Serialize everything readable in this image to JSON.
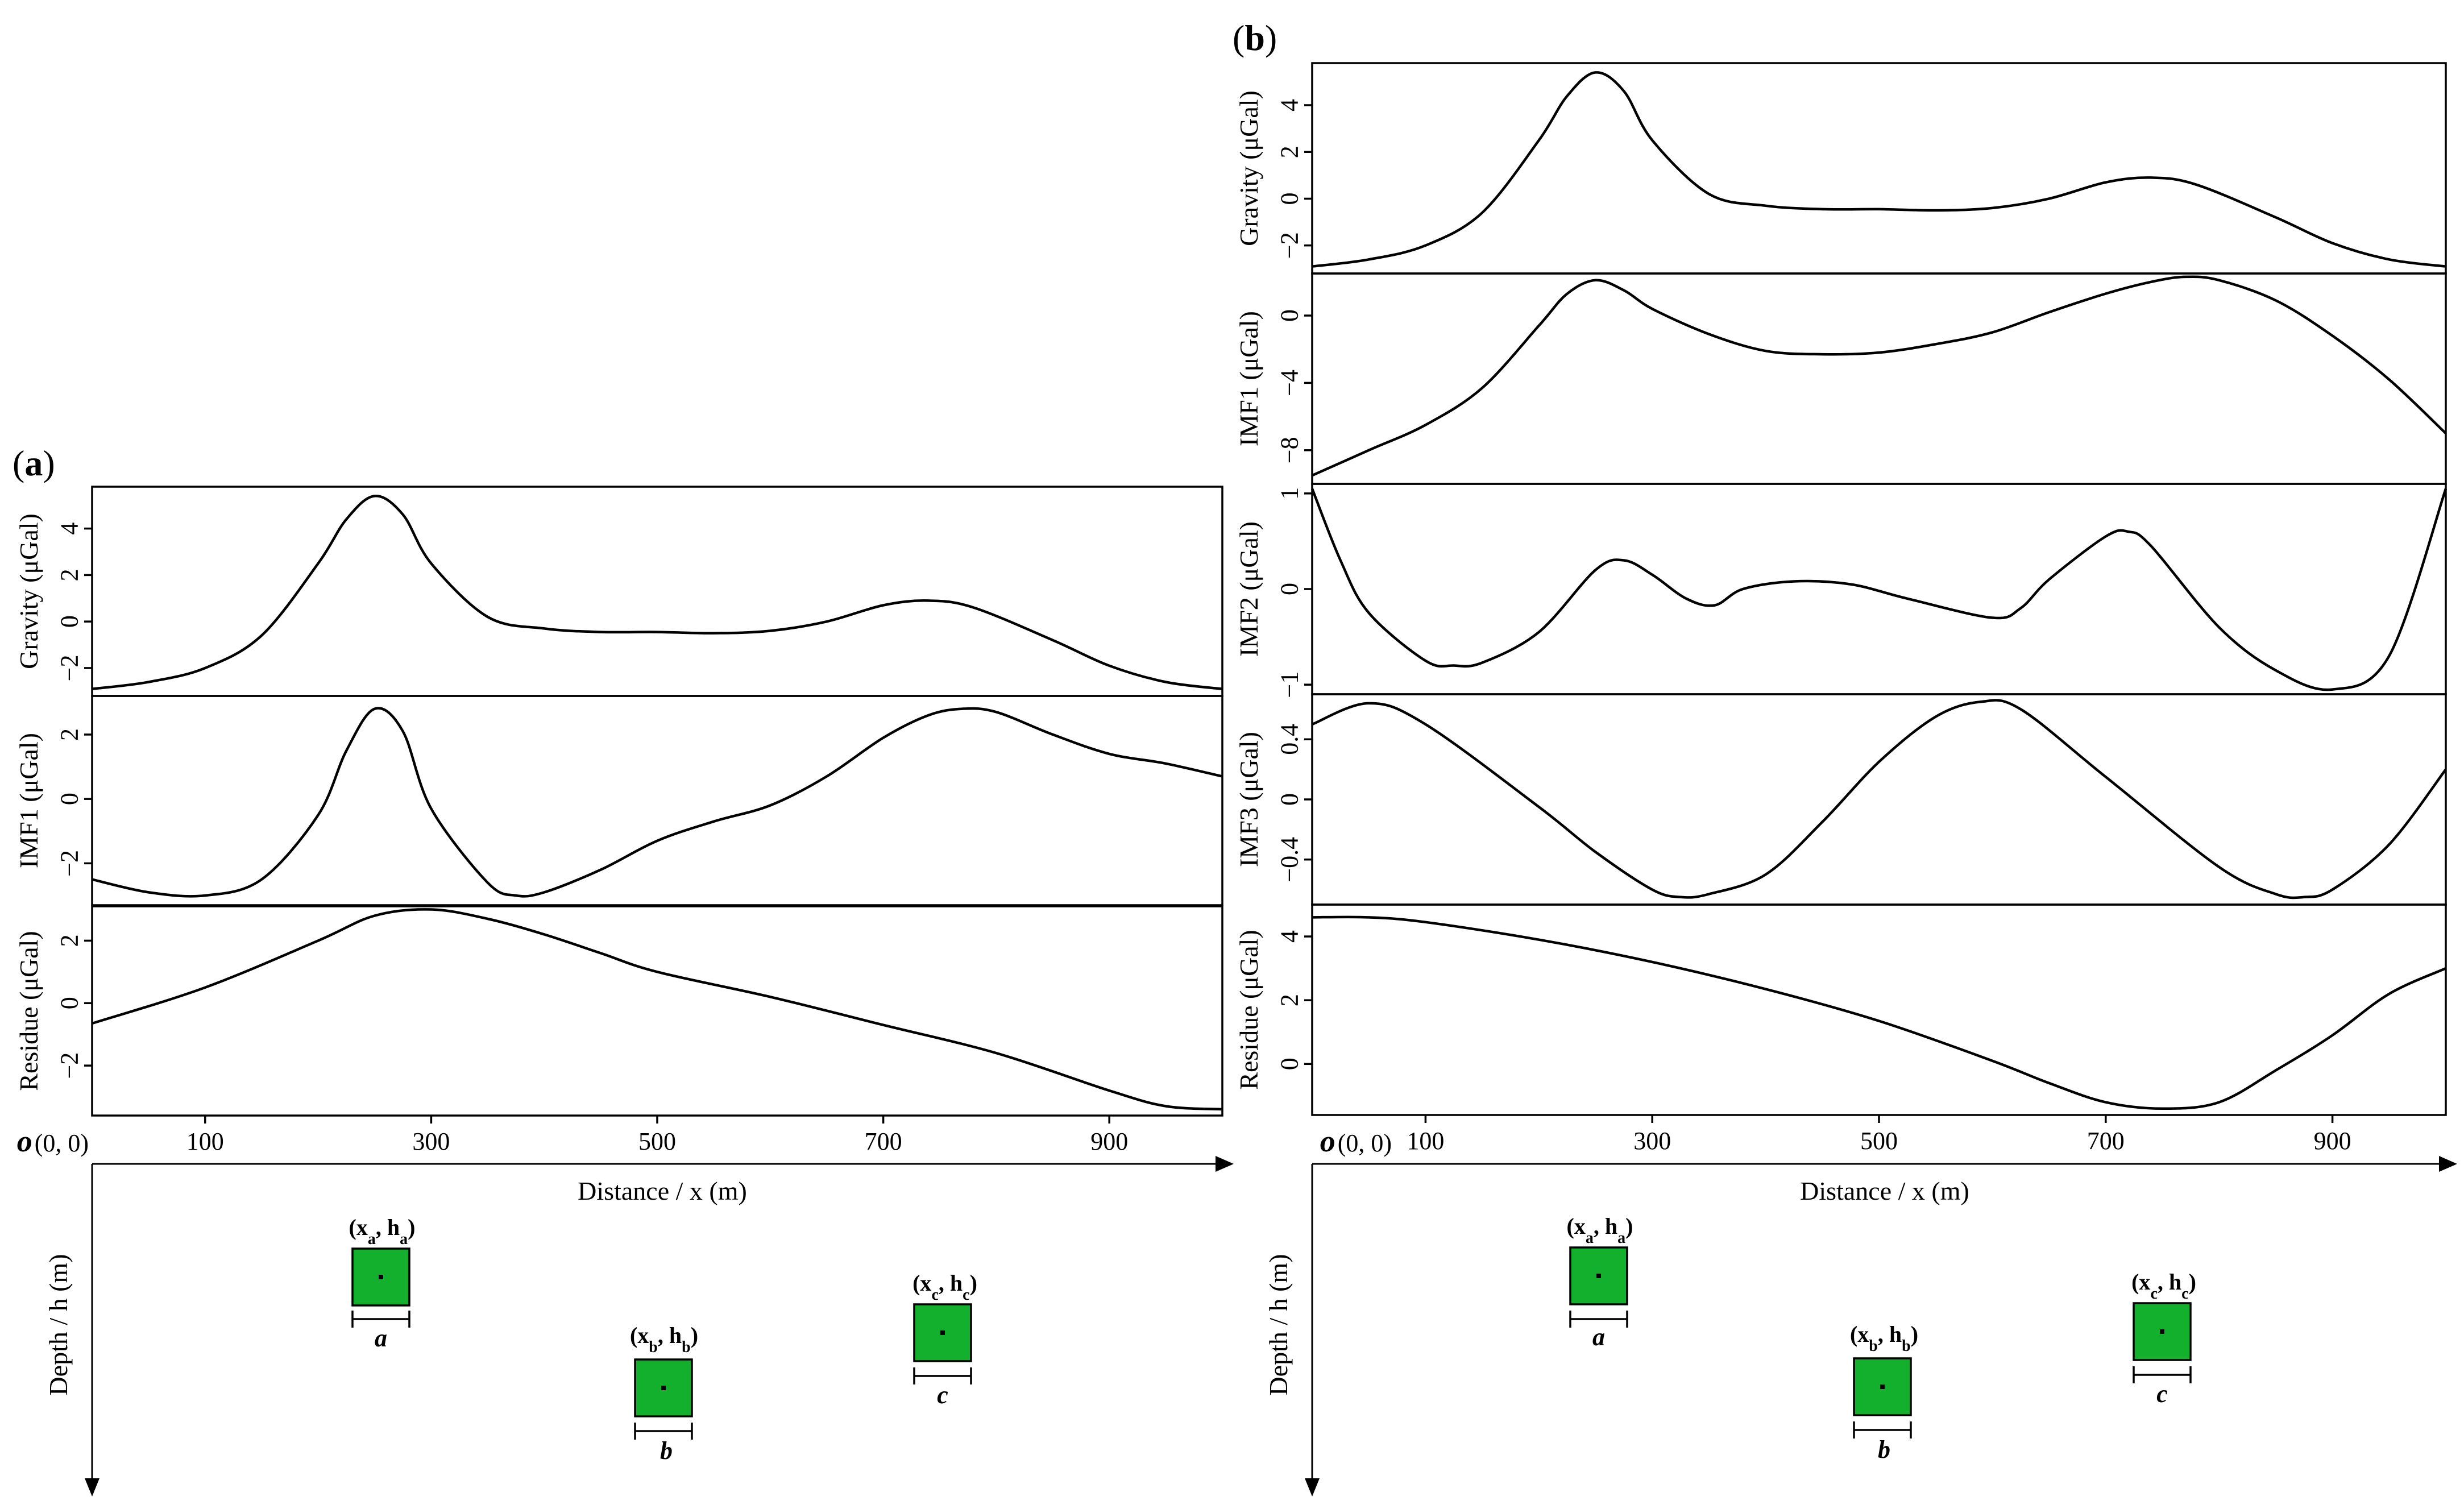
{
  "panels": [
    {
      "id": "a",
      "label": "a",
      "distance_label": "Distance / x (m)",
      "depth_label": "Depth / h (m)",
      "origin_label": "o",
      "origin_coords": "(0, 0)",
      "x_tick_labels": [
        "100",
        "300",
        "500",
        "700",
        "900"
      ],
      "bodies": [
        {
          "id": "a",
          "label": "(xa, ha)",
          "width_label": "a"
        },
        {
          "id": "b",
          "label": "(xb, hb)",
          "width_label": "b"
        },
        {
          "id": "c",
          "label": "(xc, hc)",
          "width_label": "c"
        }
      ]
    },
    {
      "id": "b",
      "label": "b",
      "distance_label": "Distance / x (m)",
      "depth_label": "Depth / h (m)",
      "origin_label": "o",
      "origin_coords": "(0, 0)",
      "x_tick_labels": [
        "100",
        "300",
        "500",
        "700",
        "900"
      ],
      "bodies": [
        {
          "id": "a",
          "label": "(xa, ha)",
          "width_label": "a"
        },
        {
          "id": "b",
          "label": "(xb, hb)",
          "width_label": "b"
        },
        {
          "id": "c",
          "label": "(xc, hc)",
          "width_label": "c"
        }
      ]
    }
  ],
  "colors": {
    "body_fill": "#12b02c",
    "line": "#000000"
  },
  "chart_data": [
    {
      "type": "line",
      "panel": "a",
      "title": "Gravity (μGal)",
      "ylabel": "Gravity (μGal)",
      "xlabel": "Distance / x (m)",
      "xlim": [
        0,
        1000
      ],
      "ylim": [
        -3.2,
        5.8
      ],
      "yticks": [
        4,
        2,
        0,
        -2
      ],
      "ytick_labels": [
        "4",
        "2",
        "0",
        "−2"
      ],
      "x": [
        0,
        50,
        100,
        150,
        200,
        225,
        250,
        275,
        300,
        350,
        400,
        450,
        500,
        550,
        600,
        650,
        700,
        740,
        780,
        850,
        900,
        950,
        1000
      ],
      "values": [
        -2.9,
        -2.6,
        -2.0,
        -0.6,
        2.5,
        4.4,
        5.4,
        4.6,
        2.5,
        0.2,
        -0.3,
        -0.45,
        -0.45,
        -0.5,
        -0.4,
        0.0,
        0.7,
        0.9,
        0.6,
        -0.8,
        -1.9,
        -2.6,
        -2.9
      ]
    },
    {
      "type": "line",
      "panel": "a",
      "title": "IMF1 (μGal)",
      "ylabel": "IMF1 (μGal)",
      "xlabel": "Distance / x (m)",
      "xlim": [
        0,
        1000
      ],
      "ylim": [
        -3.3,
        3.2
      ],
      "yticks": [
        2,
        0,
        -2
      ],
      "ytick_labels": [
        "2",
        "0",
        "−2"
      ],
      "x": [
        0,
        50,
        100,
        150,
        200,
        225,
        250,
        275,
        300,
        350,
        375,
        400,
        450,
        500,
        550,
        600,
        650,
        700,
        740,
        770,
        800,
        850,
        900,
        950,
        1000
      ],
      "values": [
        -2.5,
        -2.9,
        -3.0,
        -2.5,
        -0.5,
        1.5,
        2.8,
        2.1,
        -0.3,
        -2.6,
        -3.0,
        -2.9,
        -2.2,
        -1.3,
        -0.7,
        -0.2,
        0.7,
        1.9,
        2.6,
        2.8,
        2.7,
        2.0,
        1.4,
        1.1,
        0.7
      ]
    },
    {
      "type": "line",
      "panel": "a",
      "title": "Residue (μGal)",
      "ylabel": "Residue (μGal)",
      "xlabel": "Distance / x (m)",
      "xlim": [
        0,
        1000
      ],
      "ylim": [
        -3.6,
        3.1
      ],
      "yticks": [
        2,
        0,
        -2
      ],
      "ytick_labels": [
        "2",
        "0",
        "−2"
      ],
      "x": [
        0,
        100,
        200,
        250,
        300,
        350,
        400,
        450,
        500,
        600,
        700,
        800,
        900,
        950,
        1000
      ],
      "values": [
        -0.65,
        0.5,
        2.0,
        2.8,
        3.0,
        2.7,
        2.2,
        1.6,
        1.0,
        0.2,
        -0.7,
        -1.6,
        -2.8,
        -3.3,
        -3.4
      ]
    },
    {
      "type": "line",
      "panel": "b",
      "title": "Gravity (μGal)",
      "ylabel": "Gravity (μGal)",
      "xlabel": "Distance / x (m)",
      "xlim": [
        0,
        1000
      ],
      "ylim": [
        -3.2,
        5.8
      ],
      "yticks": [
        4,
        2,
        0,
        -2
      ],
      "ytick_labels": [
        "4",
        "2",
        "0",
        "−2"
      ],
      "x": [
        0,
        50,
        100,
        150,
        200,
        225,
        250,
        275,
        300,
        350,
        400,
        450,
        500,
        550,
        600,
        650,
        700,
        740,
        780,
        850,
        900,
        950,
        1000
      ],
      "values": [
        -2.9,
        -2.6,
        -2.0,
        -0.6,
        2.5,
        4.4,
        5.4,
        4.6,
        2.5,
        0.2,
        -0.3,
        -0.45,
        -0.45,
        -0.5,
        -0.4,
        0.0,
        0.7,
        0.9,
        0.6,
        -0.8,
        -1.9,
        -2.6,
        -2.9
      ]
    },
    {
      "type": "line",
      "panel": "b",
      "title": "IMF1 (μGal)",
      "ylabel": "IMF1 (μGal)",
      "xlabel": "Distance / x (m)",
      "xlim": [
        0,
        1000
      ],
      "ylim": [
        -10,
        2.5
      ],
      "yticks": [
        0,
        -4,
        -8
      ],
      "ytick_labels": [
        "0",
        "−4",
        "−8"
      ],
      "x": [
        0,
        50,
        100,
        150,
        200,
        225,
        250,
        275,
        300,
        350,
        400,
        450,
        500,
        550,
        600,
        650,
        700,
        740,
        770,
        800,
        850,
        900,
        950,
        1000
      ],
      "values": [
        -9.5,
        -8.0,
        -6.5,
        -4.3,
        -0.6,
        1.3,
        2.1,
        1.5,
        0.4,
        -1.1,
        -2.1,
        -2.3,
        -2.2,
        -1.7,
        -1.0,
        0.2,
        1.3,
        2.0,
        2.3,
        2.1,
        0.9,
        -1.2,
        -3.8,
        -7.0
      ]
    },
    {
      "type": "line",
      "panel": "b",
      "title": "IMF2 (μGal)",
      "ylabel": "IMF2 (μGal)",
      "xlabel": "Distance / x (m)",
      "xlim": [
        0,
        1000
      ],
      "ylim": [
        -1.1,
        1.1
      ],
      "yticks": [
        1,
        0,
        -1
      ],
      "ytick_labels": [
        "1",
        "0",
        "−1"
      ],
      "x": [
        0,
        25,
        50,
        100,
        125,
        150,
        200,
        250,
        275,
        300,
        330,
        355,
        380,
        425,
        475,
        525,
        600,
        625,
        650,
        700,
        720,
        740,
        800,
        850,
        900,
        950,
        1000
      ],
      "values": [
        1.05,
        0.3,
        -0.25,
        -0.75,
        -0.8,
        -0.77,
        -0.45,
        0.2,
        0.3,
        0.15,
        -0.1,
        -0.17,
        0.0,
        0.08,
        0.05,
        -0.1,
        -0.3,
        -0.2,
        0.1,
        0.55,
        0.6,
        0.45,
        -0.4,
        -0.85,
        -1.05,
        -0.7,
        1.05
      ]
    },
    {
      "type": "line",
      "panel": "b",
      "title": "IMF3 (μGal)",
      "ylabel": "IMF3 (μGal)",
      "xlabel": "Distance / x (m)",
      "xlim": [
        0,
        1000
      ],
      "ylim": [
        -0.7,
        0.7
      ],
      "yticks": [
        0.4,
        0,
        -0.4
      ],
      "ytick_labels": [
        "0.4",
        "0",
        "−0.4"
      ],
      "x": [
        0,
        50,
        100,
        200,
        250,
        300,
        325,
        350,
        400,
        450,
        500,
        550,
        590,
        625,
        700,
        800,
        850,
        875,
        900,
        950,
        1000
      ],
      "values": [
        0.5,
        0.64,
        0.5,
        -0.05,
        -0.35,
        -0.6,
        -0.65,
        -0.63,
        -0.5,
        -0.15,
        0.25,
        0.55,
        0.65,
        0.6,
        0.15,
        -0.45,
        -0.63,
        -0.65,
        -0.6,
        -0.3,
        0.2
      ]
    },
    {
      "type": "line",
      "panel": "b",
      "title": "Residue (μGal)",
      "ylabel": "Residue (μGal)",
      "xlabel": "Distance / x (m)",
      "xlim": [
        0,
        1000
      ],
      "ylim": [
        -1.6,
        5.0
      ],
      "yticks": [
        4,
        2,
        0
      ],
      "ytick_labels": [
        "4",
        "2",
        "0"
      ],
      "x": [
        0,
        50,
        100,
        200,
        300,
        400,
        500,
        600,
        650,
        700,
        750,
        800,
        850,
        900,
        950,
        1000
      ],
      "values": [
        4.6,
        4.6,
        4.45,
        3.9,
        3.2,
        2.35,
        1.35,
        0.1,
        -0.6,
        -1.2,
        -1.4,
        -1.2,
        -0.2,
        0.9,
        2.2,
        3.0
      ]
    }
  ]
}
